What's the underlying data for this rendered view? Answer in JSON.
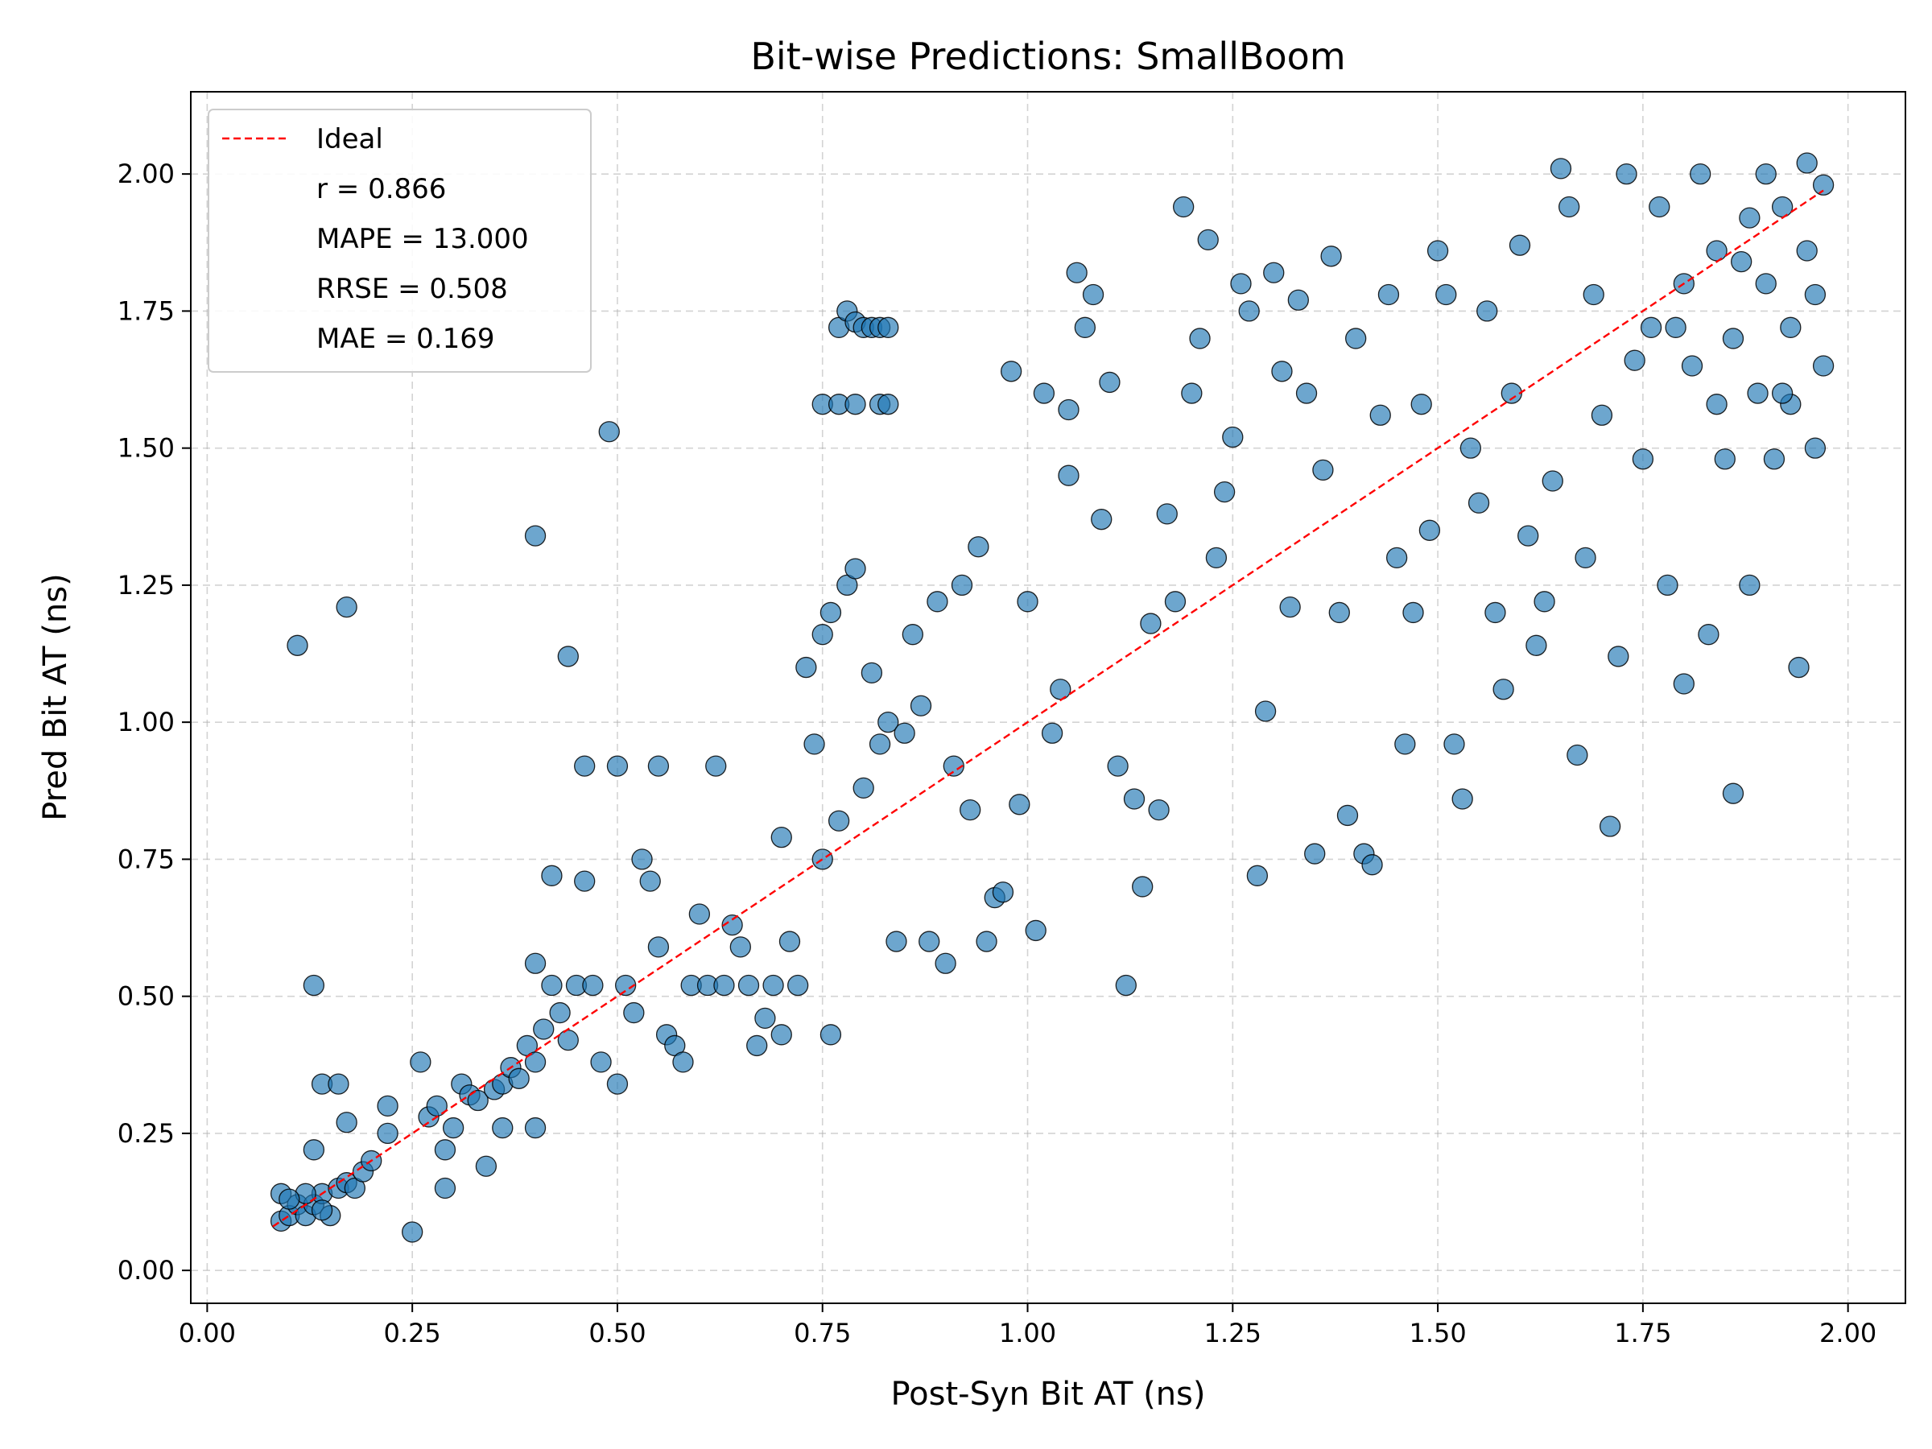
{
  "chart_data": {
    "type": "scatter",
    "title": "Bit-wise Predictions: SmallBoom",
    "xlabel": "Post-Syn Bit AT (ns)",
    "ylabel": "Pred Bit AT (ns)",
    "xlim": [
      -0.02,
      2.07
    ],
    "ylim": [
      -0.06,
      2.15
    ],
    "xticks": [
      0.0,
      0.25,
      0.5,
      0.75,
      1.0,
      1.25,
      1.5,
      1.75,
      2.0
    ],
    "yticks": [
      0.0,
      0.25,
      0.5,
      0.75,
      1.0,
      1.25,
      1.5,
      1.75,
      2.0
    ],
    "xtick_labels": [
      "0.00",
      "0.25",
      "0.50",
      "0.75",
      "1.00",
      "1.25",
      "1.50",
      "1.75",
      "2.00"
    ],
    "ytick_labels": [
      "0.00",
      "0.25",
      "0.50",
      "0.75",
      "1.00",
      "1.25",
      "1.50",
      "1.75",
      "2.00"
    ],
    "grid": true,
    "legend": {
      "placement": "top-left",
      "entries": [
        "Ideal",
        "r = 0.866",
        "MAPE = 13.000",
        "RRSE = 0.508",
        "MAE = 0.169"
      ]
    },
    "ideal_line": {
      "name": "Ideal",
      "color": "#ff0000",
      "x": [
        0.08,
        1.97
      ],
      "y": [
        0.08,
        1.97
      ]
    },
    "series": [
      {
        "color": "#1f77b4",
        "points": [
          [
            0.09,
            0.09
          ],
          [
            0.09,
            0.14
          ],
          [
            0.1,
            0.1
          ],
          [
            0.11,
            0.12
          ],
          [
            0.12,
            0.1
          ],
          [
            0.13,
            0.12
          ],
          [
            0.14,
            0.14
          ],
          [
            0.15,
            0.1
          ],
          [
            0.16,
            0.15
          ],
          [
            0.17,
            0.16
          ],
          [
            0.18,
            0.15
          ],
          [
            0.12,
            0.14
          ],
          [
            0.1,
            0.13
          ],
          [
            0.14,
            0.11
          ],
          [
            0.11,
            1.14
          ],
          [
            0.13,
            0.52
          ],
          [
            0.14,
            0.34
          ],
          [
            0.13,
            0.22
          ],
          [
            0.17,
            1.21
          ],
          [
            0.16,
            0.34
          ],
          [
            0.17,
            0.27
          ],
          [
            0.19,
            0.18
          ],
          [
            0.2,
            0.2
          ],
          [
            0.22,
            0.25
          ],
          [
            0.22,
            0.3
          ],
          [
            0.25,
            0.07
          ],
          [
            0.26,
            0.38
          ],
          [
            0.27,
            0.28
          ],
          [
            0.28,
            0.3
          ],
          [
            0.29,
            0.22
          ],
          [
            0.29,
            0.15
          ],
          [
            0.3,
            0.26
          ],
          [
            0.31,
            0.34
          ],
          [
            0.32,
            0.32
          ],
          [
            0.33,
            0.31
          ],
          [
            0.34,
            0.19
          ],
          [
            0.35,
            0.33
          ],
          [
            0.36,
            0.34
          ],
          [
            0.36,
            0.26
          ],
          [
            0.37,
            0.37
          ],
          [
            0.38,
            0.35
          ],
          [
            0.39,
            0.41
          ],
          [
            0.4,
            0.56
          ],
          [
            0.4,
            0.26
          ],
          [
            0.4,
            0.38
          ],
          [
            0.41,
            0.44
          ],
          [
            0.42,
            0.72
          ],
          [
            0.42,
            0.52
          ],
          [
            0.43,
            0.47
          ],
          [
            0.44,
            1.12
          ],
          [
            0.44,
            0.42
          ],
          [
            0.45,
            0.52
          ],
          [
            0.46,
            0.92
          ],
          [
            0.46,
            0.71
          ],
          [
            0.47,
            0.52
          ],
          [
            0.48,
            0.38
          ],
          [
            0.4,
            1.34
          ],
          [
            0.49,
            1.53
          ],
          [
            0.5,
            0.92
          ],
          [
            0.5,
            0.34
          ],
          [
            0.51,
            0.52
          ],
          [
            0.52,
            0.47
          ],
          [
            0.53,
            0.75
          ],
          [
            0.54,
            0.71
          ],
          [
            0.55,
            0.59
          ],
          [
            0.55,
            0.92
          ],
          [
            0.56,
            0.43
          ],
          [
            0.57,
            0.41
          ],
          [
            0.58,
            0.38
          ],
          [
            0.59,
            0.52
          ],
          [
            0.6,
            0.65
          ],
          [
            0.61,
            0.52
          ],
          [
            0.62,
            0.92
          ],
          [
            0.63,
            0.52
          ],
          [
            0.64,
            0.63
          ],
          [
            0.65,
            0.59
          ],
          [
            0.66,
            0.52
          ],
          [
            0.67,
            0.41
          ],
          [
            0.68,
            0.46
          ],
          [
            0.69,
            0.52
          ],
          [
            0.7,
            0.79
          ],
          [
            0.7,
            0.43
          ],
          [
            0.71,
            0.6
          ],
          [
            0.72,
            0.52
          ],
          [
            0.73,
            1.1
          ],
          [
            0.74,
            0.96
          ],
          [
            0.75,
            1.16
          ],
          [
            0.75,
            0.75
          ],
          [
            0.76,
            0.43
          ],
          [
            0.76,
            1.2
          ],
          [
            0.77,
            0.82
          ],
          [
            0.78,
            1.25
          ],
          [
            0.79,
            1.28
          ],
          [
            0.8,
            0.88
          ],
          [
            0.81,
            1.09
          ],
          [
            0.82,
            0.96
          ],
          [
            0.83,
            1.0
          ],
          [
            0.84,
            0.6
          ],
          [
            0.77,
            1.72
          ],
          [
            0.78,
            1.75
          ],
          [
            0.79,
            1.73
          ],
          [
            0.8,
            1.72
          ],
          [
            0.81,
            1.72
          ],
          [
            0.82,
            1.72
          ],
          [
            0.83,
            1.72
          ],
          [
            0.75,
            1.58
          ],
          [
            0.77,
            1.58
          ],
          [
            0.79,
            1.58
          ],
          [
            0.82,
            1.58
          ],
          [
            0.83,
            1.58
          ],
          [
            0.85,
            0.98
          ],
          [
            0.86,
            1.16
          ],
          [
            0.87,
            1.03
          ],
          [
            0.88,
            0.6
          ],
          [
            0.89,
            1.22
          ],
          [
            0.9,
            0.56
          ],
          [
            0.91,
            0.92
          ],
          [
            0.92,
            1.25
          ],
          [
            0.93,
            0.84
          ],
          [
            0.94,
            1.32
          ],
          [
            0.95,
            0.6
          ],
          [
            0.96,
            0.68
          ],
          [
            0.97,
            0.69
          ],
          [
            0.98,
            1.64
          ],
          [
            0.99,
            0.85
          ],
          [
            1.0,
            1.22
          ],
          [
            1.01,
            0.62
          ],
          [
            1.02,
            1.6
          ],
          [
            1.03,
            0.98
          ],
          [
            1.04,
            1.06
          ],
          [
            1.05,
            1.57
          ],
          [
            1.05,
            1.45
          ],
          [
            1.06,
            1.82
          ],
          [
            1.07,
            1.72
          ],
          [
            1.08,
            1.78
          ],
          [
            1.09,
            1.37
          ],
          [
            1.1,
            1.62
          ],
          [
            1.11,
            0.92
          ],
          [
            1.12,
            0.52
          ],
          [
            1.13,
            0.86
          ],
          [
            1.14,
            0.7
          ],
          [
            1.15,
            1.18
          ],
          [
            1.16,
            0.84
          ],
          [
            1.17,
            1.38
          ],
          [
            1.18,
            1.22
          ],
          [
            1.19,
            1.94
          ],
          [
            1.2,
            1.6
          ],
          [
            1.21,
            1.7
          ],
          [
            1.22,
            1.88
          ],
          [
            1.23,
            1.3
          ],
          [
            1.24,
            1.42
          ],
          [
            1.25,
            1.52
          ],
          [
            1.26,
            1.8
          ],
          [
            1.27,
            1.75
          ],
          [
            1.28,
            0.72
          ],
          [
            1.29,
            1.02
          ],
          [
            1.3,
            1.82
          ],
          [
            1.31,
            1.64
          ],
          [
            1.32,
            1.21
          ],
          [
            1.33,
            1.77
          ],
          [
            1.34,
            1.6
          ],
          [
            1.35,
            0.76
          ],
          [
            1.36,
            1.46
          ],
          [
            1.37,
            1.85
          ],
          [
            1.38,
            1.2
          ],
          [
            1.39,
            0.83
          ],
          [
            1.4,
            1.7
          ],
          [
            1.41,
            0.76
          ],
          [
            1.42,
            0.74
          ],
          [
            1.43,
            1.56
          ],
          [
            1.44,
            1.78
          ],
          [
            1.45,
            1.3
          ],
          [
            1.46,
            0.96
          ],
          [
            1.47,
            1.2
          ],
          [
            1.48,
            1.58
          ],
          [
            1.49,
            1.35
          ],
          [
            1.5,
            1.86
          ],
          [
            1.51,
            1.78
          ],
          [
            1.52,
            0.96
          ],
          [
            1.53,
            0.86
          ],
          [
            1.54,
            1.5
          ],
          [
            1.55,
            1.4
          ],
          [
            1.56,
            1.75
          ],
          [
            1.57,
            1.2
          ],
          [
            1.58,
            1.06
          ],
          [
            1.59,
            1.6
          ],
          [
            1.6,
            1.87
          ],
          [
            1.61,
            1.34
          ],
          [
            1.62,
            1.14
          ],
          [
            1.63,
            1.22
          ],
          [
            1.64,
            1.44
          ],
          [
            1.65,
            2.01
          ],
          [
            1.66,
            1.94
          ],
          [
            1.67,
            0.94
          ],
          [
            1.68,
            1.3
          ],
          [
            1.69,
            1.78
          ],
          [
            1.7,
            1.56
          ],
          [
            1.71,
            0.81
          ],
          [
            1.72,
            1.12
          ],
          [
            1.73,
            2.0
          ],
          [
            1.74,
            1.66
          ],
          [
            1.75,
            1.48
          ],
          [
            1.76,
            1.72
          ],
          [
            1.77,
            1.94
          ],
          [
            1.78,
            1.25
          ],
          [
            1.79,
            1.72
          ],
          [
            1.8,
            1.07
          ],
          [
            1.81,
            1.65
          ],
          [
            1.82,
            2.0
          ],
          [
            1.83,
            1.16
          ],
          [
            1.84,
            1.58
          ],
          [
            1.85,
            1.48
          ],
          [
            1.86,
            0.87
          ],
          [
            1.87,
            1.84
          ],
          [
            1.88,
            1.25
          ],
          [
            1.89,
            1.6
          ],
          [
            1.9,
            2.0
          ],
          [
            1.91,
            1.48
          ],
          [
            1.92,
            1.94
          ],
          [
            1.93,
            1.58
          ],
          [
            1.94,
            1.1
          ],
          [
            1.95,
            2.02
          ],
          [
            1.96,
            1.78
          ],
          [
            1.97,
            1.65
          ],
          [
            1.97,
            1.98
          ],
          [
            1.96,
            1.5
          ],
          [
            1.95,
            1.86
          ],
          [
            1.93,
            1.72
          ],
          [
            1.92,
            1.6
          ],
          [
            1.9,
            1.8
          ],
          [
            1.88,
            1.92
          ],
          [
            1.86,
            1.7
          ],
          [
            1.84,
            1.86
          ],
          [
            1.8,
            1.8
          ]
        ]
      }
    ]
  }
}
